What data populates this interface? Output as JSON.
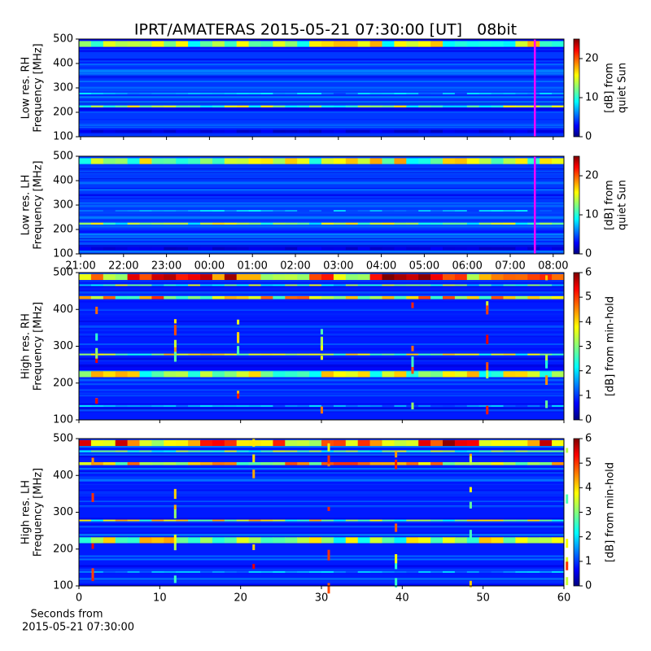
{
  "chart_data": [
    {
      "type": "spectrogram",
      "title": "IPRT/AMATERAS 2015-05-21 07:30:00 [UT]   08bit",
      "ylabel": [
        "Low res. RH",
        "Frequency [MHz]"
      ],
      "ylim": [
        100,
        500
      ],
      "yticks": [
        100,
        200,
        300,
        400,
        500
      ],
      "colorbar_label": [
        "[dB] from",
        "quiet Sun"
      ],
      "clim": [
        0,
        25
      ],
      "cticks": [
        0,
        10,
        20
      ]
    },
    {
      "type": "spectrogram",
      "ylabel": [
        "Low res. LH",
        "Frequency [MHz]"
      ],
      "ylim": [
        100,
        500
      ],
      "yticks": [
        100,
        200,
        300,
        400,
        500
      ],
      "xticks": [
        "21:00",
        "22:00",
        "23:00",
        "00:00",
        "01:00",
        "02:00",
        "03:00",
        "04:00",
        "05:00",
        "06:00",
        "07:00",
        "08:00"
      ],
      "colorbar_label": [
        "[dB] from",
        "quiet Sun"
      ],
      "clim": [
        0,
        25
      ],
      "cticks": [
        0,
        10,
        20
      ]
    },
    {
      "type": "spectrogram",
      "ylabel": [
        "High res. RH",
        "Frequency [MHz]"
      ],
      "ylim": [
        100,
        500
      ],
      "yticks": [
        100,
        200,
        300,
        400,
        500
      ],
      "xlim": [
        0,
        60
      ],
      "colorbar_label": [
        "[dB] from min-hold"
      ],
      "clim": [
        0,
        6
      ],
      "cticks": [
        0,
        1,
        2,
        3,
        4,
        5,
        6
      ]
    },
    {
      "type": "spectrogram",
      "ylabel": [
        "High res. LH",
        "Frequency [MHz]"
      ],
      "ylim": [
        100,
        500
      ],
      "yticks": [
        100,
        200,
        300,
        400,
        500
      ],
      "xlim": [
        0,
        60
      ],
      "xticks": [
        0,
        10,
        20,
        30,
        40,
        50,
        60
      ],
      "xlabel": [
        "Seconds from",
        "2015-05-21 07:30:00"
      ],
      "colorbar_label": [
        "[dB] from min-hold"
      ],
      "clim": [
        0,
        6
      ],
      "cticks": [
        0,
        1,
        2,
        3,
        4,
        5,
        6
      ]
    }
  ]
}
